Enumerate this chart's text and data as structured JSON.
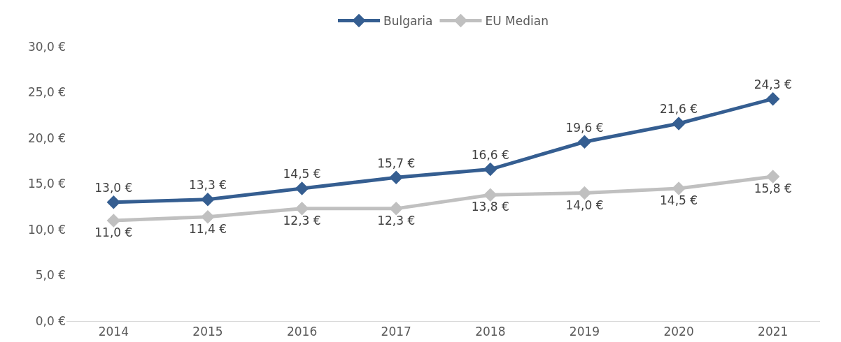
{
  "chart_data": {
    "type": "line",
    "categories": [
      "2014",
      "2015",
      "2016",
      "2017",
      "2018",
      "2019",
      "2020",
      "2021"
    ],
    "series": [
      {
        "name": "Bulgaria",
        "color": "#355e91",
        "values": [
          13.0,
          13.3,
          14.5,
          15.7,
          16.6,
          19.6,
          21.6,
          24.3
        ],
        "value_labels": [
          "13,0 €",
          "13,3 €",
          "14,5 €",
          "15,7 €",
          "16,6 €",
          "19,6 €",
          "21,6 €",
          "24,3 €"
        ]
      },
      {
        "name": "EU Median",
        "color": "#c0c0c0",
        "values": [
          11.0,
          11.4,
          12.3,
          12.3,
          13.8,
          14.0,
          14.5,
          15.8
        ],
        "value_labels": [
          "11,0 €",
          "11,4 €",
          "12,3 €",
          "12,3 €",
          "13,8 €",
          "14,0 €",
          "14,5 €",
          "15,8 €"
        ]
      }
    ],
    "ylim": [
      0,
      30
    ],
    "yticks": [
      {
        "value": 0,
        "label": "0,0 €"
      },
      {
        "value": 5,
        "label": "5,0 €"
      },
      {
        "value": 10,
        "label": "10,0 €"
      },
      {
        "value": 15,
        "label": "15,0 €"
      },
      {
        "value": 20,
        "label": "20,0 €"
      },
      {
        "value": 25,
        "label": "25,0 €"
      },
      {
        "value": 30,
        "label": "30,0 €"
      }
    ],
    "grid": false,
    "legend": "top",
    "marker": "diamond",
    "line_style": "solid"
  }
}
